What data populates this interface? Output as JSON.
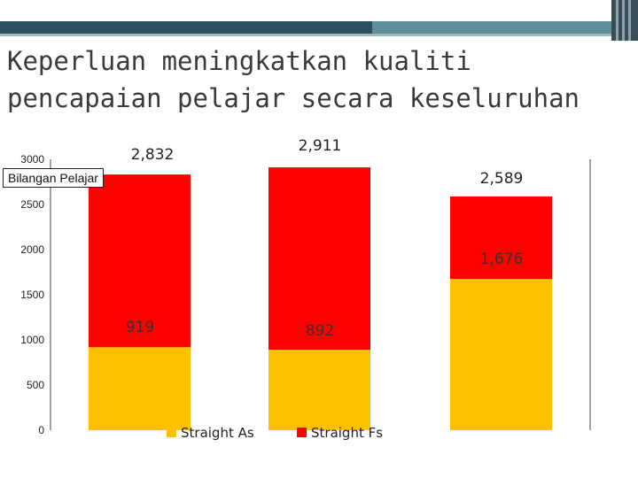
{
  "slide": {
    "title_line1": "Keperluan meningkatkan kualiti",
    "title_line2": "pencapaian pelajar secara keseluruhan"
  },
  "colors": {
    "straight_as": "#ffc000",
    "straight_fs": "#ff0000",
    "header_dark": "#2f4f5f",
    "header_teal": "#5f8f99"
  },
  "chart_data": {
    "type": "bar",
    "stacked": true,
    "categories": [
      "",
      "",
      ""
    ],
    "ylabel": "Bilangan Pelajar",
    "ylim": [
      0,
      3000
    ],
    "yticks": [
      0,
      500,
      1000,
      1500,
      2000,
      2500,
      3000
    ],
    "grid": false,
    "legend_position": "bottom",
    "series": [
      {
        "name": "Straight As",
        "values": [
          919,
          892,
          1676
        ],
        "value_labels": [
          "919",
          "892",
          "1,676"
        ],
        "color": "#ffc000"
      },
      {
        "name": "Straight Fs",
        "values": [
          1913,
          2019,
          913
        ],
        "color": "#ff0000"
      }
    ],
    "totals": [
      2832,
      2911,
      2589
    ],
    "total_labels": [
      "2,832",
      "2,911",
      "2,589"
    ]
  }
}
